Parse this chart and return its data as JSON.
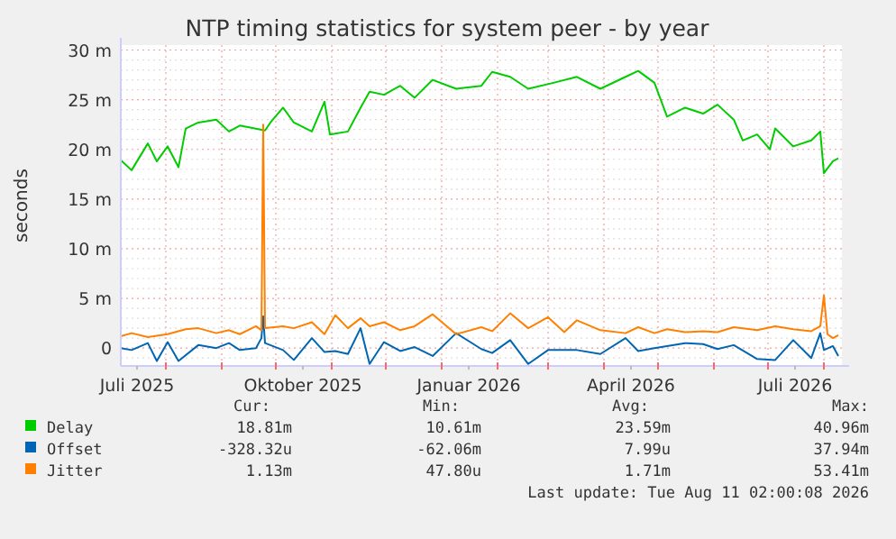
{
  "chart_data": {
    "type": "line",
    "title": "NTP timing statistics for system peer - by year",
    "ylabel": "seconds",
    "xlim": [
      "2025-07-07",
      "2026-08-11"
    ],
    "xticks": [
      {
        "value": "2025-07-16",
        "label": "Juli 2025"
      },
      {
        "value": "2025-08-01",
        "label": null
      },
      {
        "value": "2025-09-01",
        "label": null
      },
      {
        "value": "2025-10-01",
        "label": null
      },
      {
        "value": "2025-10-16",
        "label": "Oktober 2025"
      },
      {
        "value": "2025-11-01",
        "label": null
      },
      {
        "value": "2025-12-01",
        "label": null
      },
      {
        "value": "2026-01-01",
        "label": null
      },
      {
        "value": "2026-01-16",
        "label": "Januar 2026"
      },
      {
        "value": "2026-02-01",
        "label": null
      },
      {
        "value": "2026-03-01",
        "label": null
      },
      {
        "value": "2026-04-01",
        "label": null
      },
      {
        "value": "2026-04-16",
        "label": "April 2026"
      },
      {
        "value": "2026-05-01",
        "label": null
      },
      {
        "value": "2026-06-01",
        "label": null
      },
      {
        "value": "2026-07-01",
        "label": null
      },
      {
        "value": "2026-07-16",
        "label": "Juli 2026"
      },
      {
        "value": "2026-08-01",
        "label": null
      }
    ],
    "ylim": [
      -1.8,
      30.5
    ],
    "yticks": [
      {
        "value": -1,
        "label": null
      },
      0,
      {
        "value": 1,
        "label": null
      },
      {
        "value": 2,
        "label": null
      },
      {
        "value": 3,
        "label": null
      },
      {
        "value": 4,
        "label": null
      },
      {
        "value": 5,
        "label": "5 m"
      },
      {
        "value": 6,
        "label": null
      },
      {
        "value": 7,
        "label": null
      },
      {
        "value": 8,
        "label": null
      },
      {
        "value": 9,
        "label": null
      },
      {
        "value": 10,
        "label": "10 m"
      },
      {
        "value": 11,
        "label": null
      },
      {
        "value": 12,
        "label": null
      },
      {
        "value": 13,
        "label": null
      },
      {
        "value": 14,
        "label": null
      },
      {
        "value": 15,
        "label": "15 m"
      },
      {
        "value": 16,
        "label": null
      },
      {
        "value": 17,
        "label": null
      },
      {
        "value": 18,
        "label": null
      },
      {
        "value": 19,
        "label": null
      },
      {
        "value": 20,
        "label": "20 m"
      },
      {
        "value": 21,
        "label": null
      },
      {
        "value": 22,
        "label": null
      },
      {
        "value": 23,
        "label": null
      },
      {
        "value": 24,
        "label": null
      },
      {
        "value": 25,
        "label": "25 m"
      },
      {
        "value": 26,
        "label": null
      },
      {
        "value": 27,
        "label": null
      },
      {
        "value": 28,
        "label": null
      },
      {
        "value": 29,
        "label": null
      },
      {
        "value": 30,
        "label": "30 m"
      }
    ],
    "grid": true,
    "legend": "bottom",
    "line_style": "solid",
    "marker": "none",
    "series": [
      {
        "name": "Delay",
        "color": "#00cc00",
        "x": [
          "2025-07-07",
          "2025-07-13",
          "2025-07-22",
          "2025-07-27",
          "2025-08-02",
          "2025-08-08",
          "2025-08-12",
          "2025-08-19",
          "2025-08-29",
          "2025-09-05",
          "2025-09-11",
          "2025-09-25",
          "2025-09-28",
          "2025-10-05",
          "2025-10-11",
          "2025-10-21",
          "2025-10-28",
          "2025-10-31",
          "2025-11-10",
          "2025-11-17",
          "2025-11-22",
          "2025-11-30",
          "2025-12-09",
          "2025-12-17",
          "2025-12-27",
          "2026-01-09",
          "2026-01-23",
          "2026-01-29",
          "2026-02-08",
          "2026-02-18",
          "2026-03-04",
          "2026-03-17",
          "2026-03-30",
          "2026-04-13",
          "2026-04-20",
          "2026-04-29",
          "2026-05-06",
          "2026-05-16",
          "2026-05-26",
          "2026-06-03",
          "2026-06-12",
          "2026-06-17",
          "2026-06-25",
          "2026-07-02",
          "2026-07-05",
          "2026-07-15",
          "2026-07-25",
          "2026-07-30",
          "2026-08-01",
          "2026-08-06",
          "2026-08-09"
        ],
        "values": [
          18.9,
          17.9,
          20.6,
          18.8,
          20.3,
          18.2,
          22.1,
          22.7,
          23.0,
          21.8,
          22.4,
          21.9,
          22.7,
          24.2,
          22.7,
          21.8,
          24.8,
          21.5,
          21.8,
          24.2,
          25.8,
          25.5,
          26.4,
          25.2,
          27.0,
          26.1,
          26.4,
          27.8,
          27.3,
          26.1,
          26.7,
          27.3,
          26.1,
          27.3,
          27.9,
          26.7,
          23.3,
          24.2,
          23.6,
          24.5,
          23.0,
          20.9,
          21.5,
          20.0,
          22.1,
          20.3,
          20.9,
          21.8,
          17.6,
          18.8,
          19.1
        ]
      },
      {
        "name": "Offset",
        "color": "#0066b3",
        "x": [
          "2025-07-07",
          "2025-07-13",
          "2025-07-22",
          "2025-07-27",
          "2025-08-02",
          "2025-08-08",
          "2025-08-19",
          "2025-08-29",
          "2025-09-05",
          "2025-09-11",
          "2025-09-20",
          "2025-09-23",
          "2025-09-24",
          "2025-09-25",
          "2025-10-05",
          "2025-10-11",
          "2025-10-21",
          "2025-10-28",
          "2025-11-03",
          "2025-11-10",
          "2025-11-17",
          "2025-11-22",
          "2025-11-30",
          "2025-12-09",
          "2025-12-17",
          "2025-12-27",
          "2026-01-09",
          "2026-01-23",
          "2026-01-29",
          "2026-02-08",
          "2026-02-18",
          "2026-03-01",
          "2026-03-17",
          "2026-03-30",
          "2026-04-13",
          "2026-04-20",
          "2026-04-29",
          "2026-05-16",
          "2026-05-26",
          "2026-06-03",
          "2026-06-12",
          "2026-06-25",
          "2026-07-05",
          "2026-07-15",
          "2026-07-25",
          "2026-07-30",
          "2026-08-01",
          "2026-08-06",
          "2026-08-09"
        ],
        "values": [
          0,
          -0.2,
          0.5,
          -1.3,
          0.6,
          -1.3,
          0.3,
          0,
          0.5,
          -0.2,
          0,
          1.0,
          3.2,
          0.5,
          -0.2,
          -1.2,
          1.0,
          -0.4,
          -0.3,
          -0.6,
          2.0,
          -1.6,
          0.6,
          -0.3,
          0.1,
          -0.8,
          1.5,
          -0.1,
          -0.5,
          0.8,
          -1.6,
          -0.2,
          -0.2,
          -0.6,
          1.0,
          -0.3,
          0,
          0.5,
          0.4,
          -0.1,
          0.3,
          -1.1,
          -1.2,
          0.8,
          -1.0,
          1.5,
          -0.2,
          0.2,
          -0.8
        ]
      },
      {
        "name": "Jitter",
        "color": "#ff8000",
        "x": [
          "2025-07-07",
          "2025-07-13",
          "2025-07-22",
          "2025-08-02",
          "2025-08-12",
          "2025-08-19",
          "2025-08-29",
          "2025-09-05",
          "2025-09-11",
          "2025-09-20",
          "2025-09-23",
          "2025-09-24",
          "2025-09-25",
          "2025-10-05",
          "2025-10-11",
          "2025-10-21",
          "2025-10-28",
          "2025-11-03",
          "2025-11-10",
          "2025-11-17",
          "2025-11-22",
          "2025-11-30",
          "2025-12-09",
          "2025-12-17",
          "2025-12-27",
          "2026-01-09",
          "2026-01-23",
          "2026-01-29",
          "2026-02-08",
          "2026-02-18",
          "2026-03-01",
          "2026-03-10",
          "2026-03-17",
          "2026-03-30",
          "2026-04-13",
          "2026-04-20",
          "2026-04-29",
          "2026-05-06",
          "2026-05-16",
          "2026-05-26",
          "2026-06-03",
          "2026-06-12",
          "2026-06-25",
          "2026-07-05",
          "2026-07-15",
          "2026-07-25",
          "2026-07-30",
          "2026-08-01",
          "2026-08-03",
          "2026-08-06",
          "2026-08-09"
        ],
        "values": [
          1.2,
          1.5,
          1.1,
          1.4,
          1.9,
          2.0,
          1.5,
          1.8,
          1.4,
          2.2,
          1.8,
          22.5,
          2.0,
          2.2,
          2.0,
          2.6,
          1.4,
          3.3,
          2.0,
          3.0,
          2.2,
          2.6,
          1.8,
          2.2,
          3.4,
          1.4,
          2.1,
          1.7,
          3.5,
          2.0,
          3.1,
          1.6,
          2.8,
          1.8,
          1.5,
          2.1,
          1.5,
          1.9,
          1.6,
          1.7,
          1.6,
          2.1,
          1.8,
          2.2,
          1.9,
          1.7,
          2.2,
          5.3,
          1.4,
          1.0,
          1.3
        ]
      }
    ],
    "annotations": [
      "Cur:",
      "Min:",
      "Avg:",
      "Max:",
      "18.81m",
      "10.61m",
      "23.59m",
      "40.96m",
      "-328.32u",
      "-62.06m",
      "7.99u",
      "37.94m",
      "1.13m",
      "47.80u",
      "1.71m",
      "53.41m",
      "Last update: Tue Aug 11 02:00:08 2026"
    ]
  }
}
